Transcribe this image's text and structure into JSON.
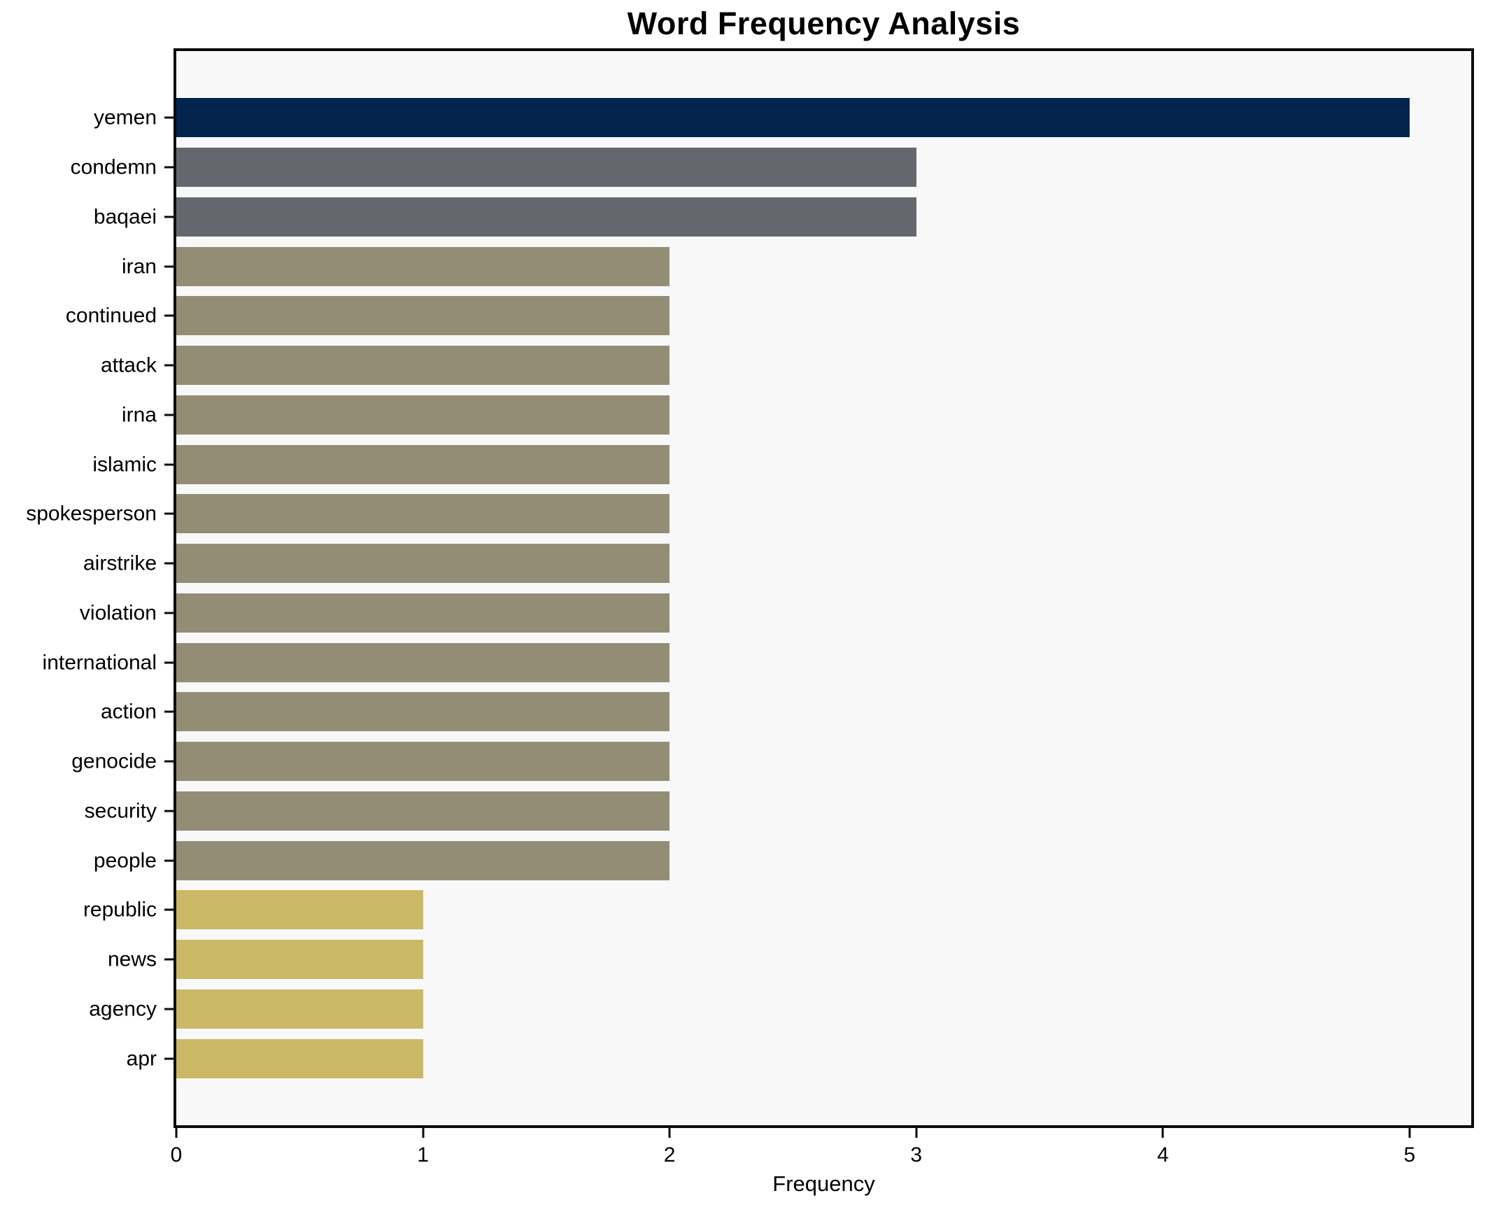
{
  "chart_data": {
    "type": "bar",
    "orientation": "horizontal",
    "title": "Word Frequency Analysis",
    "xlabel": "Frequency",
    "ylabel": "",
    "xlim": [
      0,
      5.25
    ],
    "xticks": [
      0,
      1,
      2,
      3,
      4,
      5
    ],
    "grid": false,
    "legend": "none",
    "categories": [
      "yemen",
      "condemn",
      "baqaei",
      "iran",
      "continued",
      "attack",
      "irna",
      "islamic",
      "spokesperson",
      "airstrike",
      "violation",
      "international",
      "action",
      "genocide",
      "security",
      "people",
      "republic",
      "news",
      "agency",
      "apr"
    ],
    "values": [
      5,
      3,
      3,
      2,
      2,
      2,
      2,
      2,
      2,
      2,
      2,
      2,
      2,
      2,
      2,
      2,
      1,
      1,
      1,
      1
    ],
    "bar_colors": [
      "#03244d",
      "#64686e",
      "#64686e",
      "#948d75",
      "#948d75",
      "#948d75",
      "#948d75",
      "#948d75",
      "#948d75",
      "#948d75",
      "#948d75",
      "#948d75",
      "#948d75",
      "#948d75",
      "#948d75",
      "#948d75",
      "#cab866",
      "#cab866",
      "#cab866",
      "#cab866"
    ],
    "colors": {
      "figure_background": "#ffffff",
      "plot_background": "#f7f8f7",
      "axis": "#0b0b0b",
      "text": "#000000",
      "navy": "#03244d",
      "gray": "#64686e",
      "olive": "#948d75",
      "gold": "#cab866"
    }
  }
}
